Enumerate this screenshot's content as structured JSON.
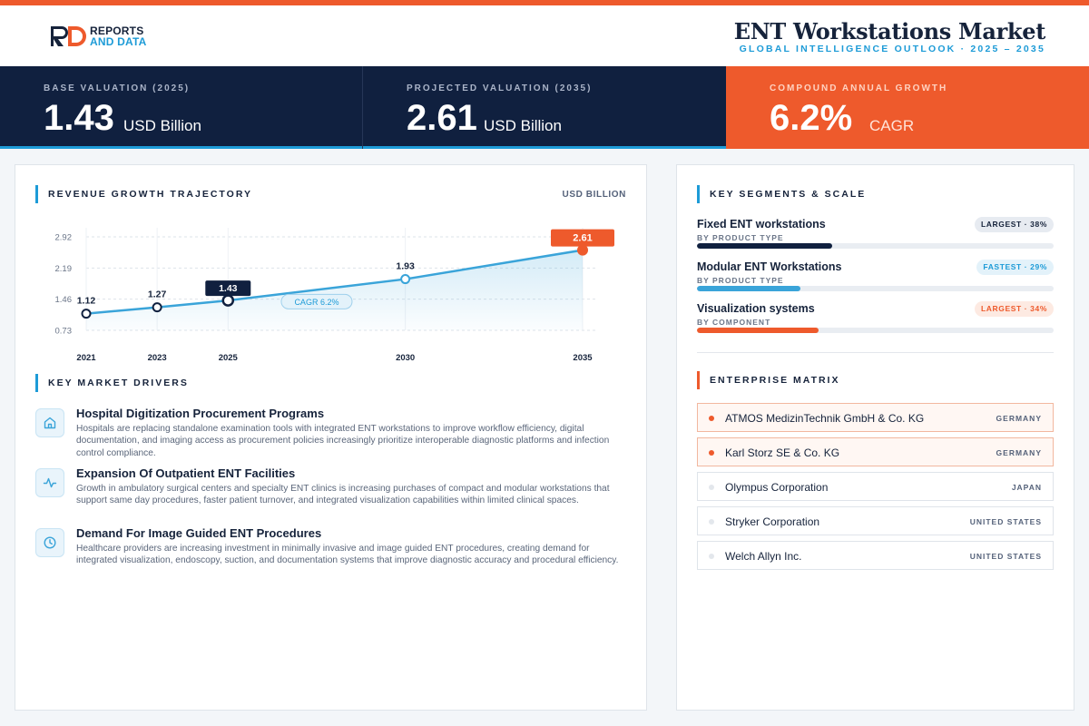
{
  "brand": {
    "logo_line1": "REPORTS",
    "logo_line2": "AND DATA"
  },
  "header": {
    "title": "ENT Workstations Market",
    "subtitle": "GLOBAL INTELLIGENCE OUTLOOK · 2025 – 2035"
  },
  "kpis": [
    {
      "label": "BASE VALUATION (2025)",
      "value": "1.43",
      "unit": "USD Billion"
    },
    {
      "label": "PROJECTED VALUATION (2035)",
      "value": "2.61",
      "unit": "USD Billion"
    },
    {
      "label": "COMPOUND ANNUAL GROWTH",
      "value": "6.2%",
      "unit": "CAGR"
    }
  ],
  "revenue": {
    "title": "REVENUE GROWTH TRAJECTORY",
    "unit_label": "USD BILLION",
    "cagr_label": "CAGR 6.2%"
  },
  "chart_data": {
    "type": "area",
    "title": "REVENUE GROWTH TRAJECTORY",
    "ylabel": "USD BILLION",
    "x": [
      "2021",
      "2023",
      "2025",
      "2030",
      "2035"
    ],
    "values": [
      1.12,
      1.27,
      1.43,
      1.93,
      2.61
    ],
    "value_labels": [
      "1.12",
      "1.27",
      "1.43",
      "1.93",
      "2.61"
    ],
    "yticks": [
      "2.92",
      "2.19",
      "1.46",
      "0.73"
    ],
    "ylim": [
      0.73,
      2.92
    ],
    "grid": true,
    "highlight": {
      "base": "2025",
      "projected": "2035"
    },
    "annotation": "CAGR 6.2%",
    "colors": {
      "line": "#3aa4d9",
      "highlight": "#ee5a2c",
      "base": "#10203f"
    }
  },
  "drivers": {
    "title": "KEY MARKET DRIVERS",
    "items": [
      {
        "icon": "building-icon",
        "title": "Hospital Digitization Procurement Programs",
        "desc": "Hospitals are replacing standalone examination tools with integrated ENT workstations to improve workflow efficiency, digital documentation, and imaging access as procurement policies increasingly prioritize interoperable diagnostic platforms and infection control compliance."
      },
      {
        "icon": "pulse-icon",
        "title": "Expansion Of Outpatient ENT Facilities",
        "desc": "Growth in ambulatory surgical centers and specialty ENT clinics is increasing purchases of compact and modular workstations that support same day procedures, faster patient turnover, and integrated visualization capabilities within limited clinical spaces."
      },
      {
        "icon": "clock-icon",
        "title": "Demand For Image Guided ENT Procedures",
        "desc": "Healthcare providers are increasing investment in minimally invasive and image guided ENT procedures, creating demand for integrated visualization, endoscopy, suction, and documentation systems that improve diagnostic accuracy and procedural efficiency."
      }
    ]
  },
  "segments": {
    "title": "KEY SEGMENTS & SCALE",
    "items": [
      {
        "name": "Fixed ENT workstations",
        "sub": "BY PRODUCT TYPE",
        "badge": "LARGEST · 38%",
        "share": 38,
        "color": "#10203f",
        "style": "navy"
      },
      {
        "name": "Modular ENT Workstations",
        "sub": "BY PRODUCT TYPE",
        "badge": "FASTEST · 29%",
        "share": 29,
        "color": "#3aa4d9",
        "style": "blue"
      },
      {
        "name": "Visualization systems",
        "sub": "BY COMPONENT",
        "badge": "LARGEST · 34%",
        "share": 34,
        "color": "#ee5a2c",
        "style": "orange"
      }
    ]
  },
  "enterprise": {
    "title": "ENTERPRISE MATRIX",
    "items": [
      {
        "name": "ATMOS MedizinTechnik GmbH & Co. KG",
        "country": "GERMANY",
        "highlight": true
      },
      {
        "name": "Karl Storz SE & Co. KG",
        "country": "GERMANY",
        "highlight": true
      },
      {
        "name": "Olympus Corporation",
        "country": "JAPAN",
        "highlight": false
      },
      {
        "name": "Stryker Corporation",
        "country": "UNITED STATES",
        "highlight": false
      },
      {
        "name": "Welch Allyn Inc.",
        "country": "UNITED STATES",
        "highlight": false
      }
    ]
  }
}
